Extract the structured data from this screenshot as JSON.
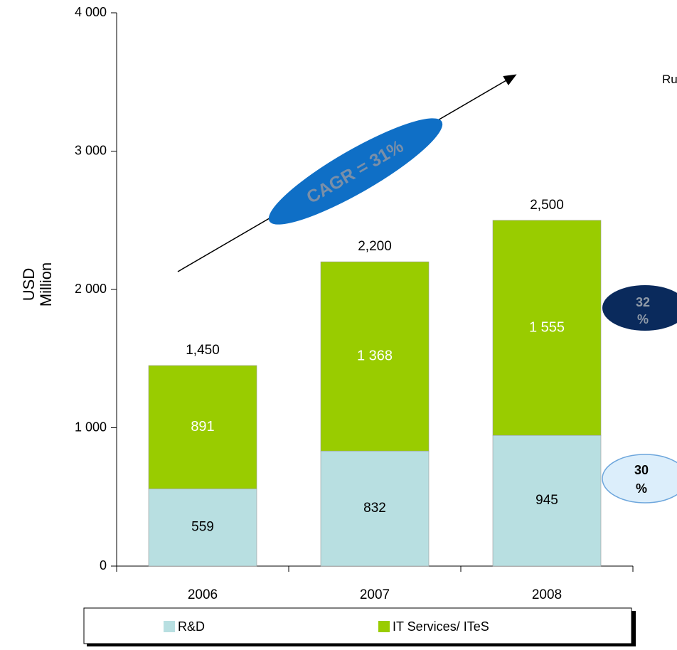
{
  "chart_data": {
    "type": "bar",
    "stacked": true,
    "categories": [
      "2006",
      "2007",
      "2008"
    ],
    "series": [
      {
        "name": "R&D",
        "values": [
          559,
          832,
          945
        ],
        "labels": [
          "559",
          "832",
          "945"
        ],
        "color": "#b8dfe1"
      },
      {
        "name": "IT Services/ ITeS",
        "values": [
          891,
          1368,
          1555
        ],
        "labels": [
          "891",
          "1 368",
          "1 555"
        ],
        "color": "#99cc00"
      }
    ],
    "totals": [
      "1,450",
      "2,200",
      "2,500"
    ],
    "ylabel_line1": "USD",
    "ylabel_line2": "Million",
    "ylim": [
      0,
      4000
    ],
    "yticks": [
      0,
      1000,
      2000,
      3000,
      4000
    ],
    "ytick_labels": [
      "0",
      "1 000",
      "2 000",
      "3 000",
      "4 000"
    ],
    "annotations": {
      "cagr": "CAGR = 31%",
      "badge_it_line1": "32",
      "badge_it_line2": "%",
      "badge_rd_line1": "30",
      "badge_rd_line2": "%",
      "side_text": "Ru"
    },
    "legend_position": "bottom",
    "grid": false
  },
  "colors": {
    "cagr_ellipse": "#0f6fc6",
    "badge_it_fill": "#0a2a5c",
    "badge_it_text": "#8f9aa8",
    "badge_rd_fill": "#dceefb",
    "badge_rd_stroke": "#6da6dc"
  }
}
